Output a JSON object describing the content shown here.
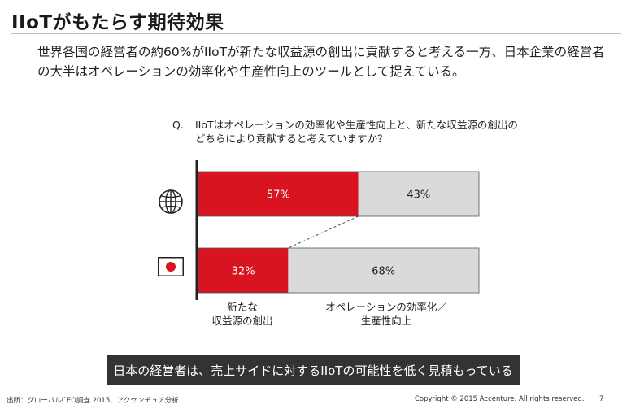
{
  "title": "IIoTがもたらす期待効果",
  "subtitle": "世界各国の経営者の約60%がIIoTが新たな収益源の創出に貢献すると考える一方、日本企業の経営者の大半はオペレーションの効率化や生産性向上のツールとして捉えている。",
  "question": {
    "mark": "Q.",
    "text": "IIoTはオペレーションの効率化や生産性向上と、新たな収益源の創出のどちらにより貢献すると考えていますか？"
  },
  "chart_data": {
    "type": "bar",
    "orientation": "horizontal",
    "stacked": true,
    "percent": true,
    "rows": [
      {
        "icon": "globe-icon",
        "segments": [
          57,
          43
        ]
      },
      {
        "icon": "japan-flag-icon",
        "segments": [
          32,
          68
        ]
      }
    ],
    "data_labels": [
      [
        "57%",
        "43%"
      ],
      [
        "32%",
        "68%"
      ]
    ],
    "categories": [
      "新たな収益源の創出",
      "オペレーションの効率化／生産性向上"
    ],
    "category_lines": [
      [
        "新たな",
        "収益源の創出"
      ],
      [
        "オペレーションの効率化／",
        "生産性向上"
      ]
    ],
    "colors": {
      "revenue": "#d7141f",
      "efficiency": "#dadada",
      "flag_red": "#d7141f"
    },
    "xlim": [
      0,
      100
    ],
    "grid": false
  },
  "banner": "日本の経営者は、売上サイドに対するIIoTの可能性を低く見積もっている",
  "footer": {
    "source": "出所：グローバルCEO調査 2015、アクセンチュア分析",
    "copyright": "Copyright © 2015 Accenture. All rights reserved.",
    "page": "7"
  }
}
